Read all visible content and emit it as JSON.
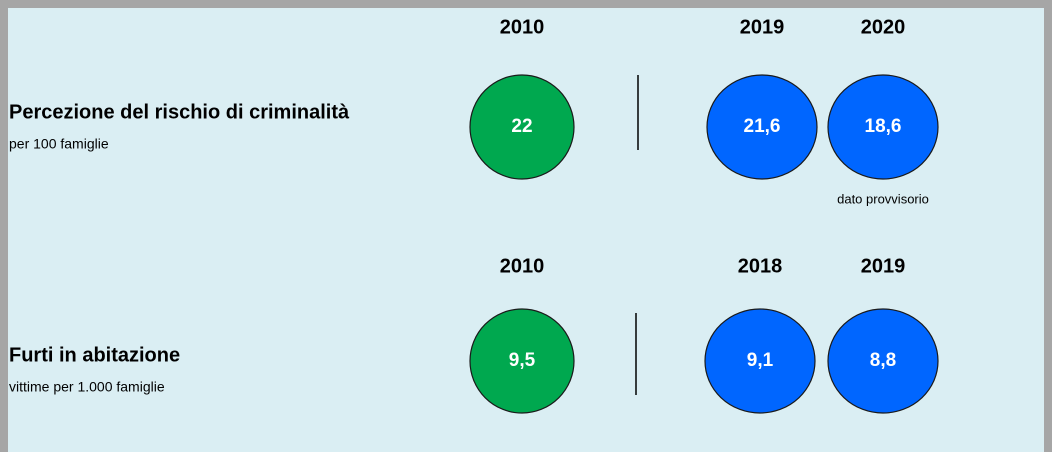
{
  "panels": [
    {
      "title": "Percezione del rischio di criminalità",
      "subtitle": "per 100 famiglie",
      "items": [
        {
          "year": "2010",
          "value": "22"
        },
        {
          "year": "2019",
          "value": "21,6"
        },
        {
          "year": "2020",
          "value": "18,6"
        }
      ],
      "note": "dato provvisorio"
    },
    {
      "title": "Furti in abitazione",
      "subtitle": "vittime per 1.000 famiglie",
      "items": [
        {
          "year": "2010",
          "value": "9,5"
        },
        {
          "year": "2018",
          "value": "9,1"
        },
        {
          "year": "2019",
          "value": "8,8"
        }
      ]
    }
  ]
}
